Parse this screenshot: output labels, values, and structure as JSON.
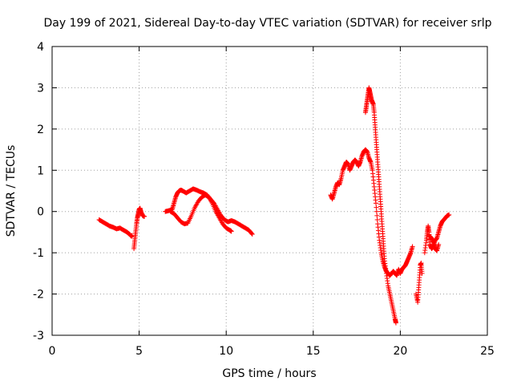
{
  "chart_data": {
    "type": "scatter",
    "title": "Day 199 of 2021, Sidereal Day-to-day VTEC variation (SDTVAR) for receiver srlp",
    "xlabel": "GPS time / hours",
    "ylabel": "SDTVAR / TECUs",
    "xlim": [
      0,
      25
    ],
    "ylim": [
      -3,
      4
    ],
    "xticks": [
      0,
      5,
      10,
      15,
      20,
      25
    ],
    "yticks": [
      -3,
      -2,
      -1,
      0,
      1,
      2,
      3,
      4
    ],
    "grid": true,
    "marker": "+",
    "color": "#ff0000",
    "series": [
      {
        "name": "srlp",
        "segments": [
          [
            [
              2.7,
              -0.2
            ],
            [
              2.9,
              -0.25
            ],
            [
              3.1,
              -0.3
            ],
            [
              3.3,
              -0.35
            ],
            [
              3.5,
              -0.38
            ],
            [
              3.7,
              -0.42
            ],
            [
              3.9,
              -0.4
            ],
            [
              4.1,
              -0.45
            ],
            [
              4.3,
              -0.5
            ],
            [
              4.45,
              -0.55
            ],
            [
              4.55,
              -0.6
            ],
            [
              4.6,
              -0.58
            ]
          ],
          [
            [
              4.7,
              -0.9
            ],
            [
              4.75,
              -0.7
            ],
            [
              4.8,
              -0.5
            ],
            [
              4.85,
              -0.3
            ],
            [
              4.9,
              -0.15
            ],
            [
              4.95,
              -0.05
            ],
            [
              5.0,
              0.05
            ],
            [
              5.05,
              0.08
            ],
            [
              5.1,
              0.0
            ],
            [
              5.2,
              -0.1
            ],
            [
              5.3,
              -0.12
            ]
          ],
          [
            [
              6.5,
              0.0
            ],
            [
              6.7,
              0.02
            ],
            [
              6.9,
              0.05
            ],
            [
              7.0,
              0.2
            ],
            [
              7.1,
              0.35
            ],
            [
              7.2,
              0.45
            ],
            [
              7.3,
              0.5
            ],
            [
              7.4,
              0.52
            ],
            [
              7.5,
              0.5
            ],
            [
              7.7,
              0.45
            ],
            [
              7.9,
              0.5
            ],
            [
              8.1,
              0.55
            ],
            [
              8.3,
              0.52
            ],
            [
              8.5,
              0.48
            ],
            [
              8.7,
              0.45
            ],
            [
              8.9,
              0.4
            ],
            [
              9.1,
              0.3
            ],
            [
              9.3,
              0.2
            ],
            [
              9.5,
              0.05
            ],
            [
              9.7,
              -0.1
            ],
            [
              9.9,
              -0.2
            ],
            [
              10.1,
              -0.25
            ],
            [
              10.3,
              -0.22
            ],
            [
              10.5,
              -0.25
            ],
            [
              10.7,
              -0.3
            ],
            [
              10.9,
              -0.35
            ],
            [
              11.1,
              -0.4
            ],
            [
              11.3,
              -0.45
            ],
            [
              11.5,
              -0.55
            ]
          ],
          [
            [
              6.8,
              0.0
            ],
            [
              7.0,
              -0.05
            ],
            [
              7.2,
              -0.15
            ],
            [
              7.4,
              -0.25
            ],
            [
              7.6,
              -0.3
            ],
            [
              7.8,
              -0.28
            ],
            [
              8.0,
              -0.1
            ],
            [
              8.2,
              0.1
            ],
            [
              8.4,
              0.25
            ],
            [
              8.6,
              0.35
            ],
            [
              8.8,
              0.4
            ],
            [
              9.0,
              0.35
            ],
            [
              9.2,
              0.2
            ],
            [
              9.4,
              0.0
            ],
            [
              9.6,
              -0.15
            ],
            [
              9.8,
              -0.3
            ],
            [
              10.0,
              -0.4
            ],
            [
              10.2,
              -0.45
            ],
            [
              10.3,
              -0.48
            ]
          ],
          [
            [
              16.0,
              0.4
            ],
            [
              16.1,
              0.3
            ],
            [
              16.2,
              0.45
            ],
            [
              16.3,
              0.6
            ],
            [
              16.4,
              0.7
            ],
            [
              16.5,
              0.65
            ],
            [
              16.6,
              0.8
            ],
            [
              16.7,
              1.0
            ],
            [
              16.8,
              1.1
            ],
            [
              16.9,
              1.2
            ],
            [
              17.0,
              1.15
            ],
            [
              17.1,
              1.0
            ],
            [
              17.2,
              1.1
            ],
            [
              17.3,
              1.2
            ],
            [
              17.4,
              1.25
            ],
            [
              17.5,
              1.2
            ],
            [
              17.6,
              1.1
            ],
            [
              17.7,
              1.2
            ],
            [
              17.8,
              1.35
            ],
            [
              17.9,
              1.45
            ],
            [
              18.0,
              1.5
            ],
            [
              18.1,
              1.45
            ],
            [
              18.2,
              1.3
            ],
            [
              18.3,
              1.2
            ],
            [
              18.4,
              1.0
            ],
            [
              18.5,
              0.6
            ],
            [
              18.6,
              0.2
            ],
            [
              18.7,
              -0.3
            ],
            [
              18.8,
              -0.7
            ],
            [
              18.9,
              -1.0
            ],
            [
              19.0,
              -1.2
            ],
            [
              19.1,
              -1.35
            ],
            [
              19.2,
              -1.45
            ],
            [
              19.3,
              -1.5
            ],
            [
              19.4,
              -1.55
            ],
            [
              19.5,
              -1.5
            ],
            [
              19.6,
              -1.45
            ],
            [
              19.7,
              -1.5
            ],
            [
              19.8,
              -1.55
            ],
            [
              19.9,
              -1.4
            ],
            [
              20.0,
              -1.5
            ],
            [
              20.1,
              -1.4
            ],
            [
              20.2,
              -1.35
            ],
            [
              20.3,
              -1.3
            ],
            [
              20.4,
              -1.2
            ],
            [
              20.5,
              -1.1
            ],
            [
              20.6,
              -1.0
            ],
            [
              20.7,
              -0.85
            ]
          ],
          [
            [
              18.0,
              2.4
            ],
            [
              18.05,
              2.55
            ],
            [
              18.1,
              2.7
            ],
            [
              18.15,
              2.85
            ],
            [
              18.2,
              3.0
            ],
            [
              18.25,
              2.9
            ],
            [
              18.3,
              2.8
            ],
            [
              18.35,
              2.7
            ],
            [
              18.4,
              2.65
            ],
            [
              18.45,
              2.6
            ],
            [
              18.5,
              2.4
            ],
            [
              18.55,
              2.1
            ],
            [
              18.6,
              1.8
            ],
            [
              18.65,
              1.5
            ],
            [
              18.7,
              1.2
            ],
            [
              18.75,
              0.9
            ],
            [
              18.8,
              0.6
            ],
            [
              18.85,
              0.3
            ],
            [
              18.9,
              0.0
            ],
            [
              18.95,
              -0.3
            ],
            [
              19.0,
              -0.6
            ],
            [
              19.05,
              -0.9
            ],
            [
              19.1,
              -1.2
            ],
            [
              19.2,
              -1.5
            ],
            [
              19.3,
              -1.8
            ],
            [
              19.4,
              -2.0
            ],
            [
              19.5,
              -2.2
            ],
            [
              19.6,
              -2.4
            ],
            [
              19.7,
              -2.6
            ],
            [
              19.75,
              -2.7
            ]
          ],
          [
            [
              20.9,
              -2.0
            ],
            [
              21.0,
              -2.2
            ],
            [
              21.05,
              -1.9
            ],
            [
              21.1,
              -1.6
            ],
            [
              21.15,
              -1.3
            ],
            [
              21.2,
              -1.25
            ],
            [
              21.25,
              -1.5
            ]
          ],
          [
            [
              21.4,
              -1.0
            ],
            [
              21.5,
              -0.7
            ],
            [
              21.55,
              -0.5
            ],
            [
              21.6,
              -0.35
            ],
            [
              21.65,
              -0.5
            ],
            [
              21.7,
              -0.8
            ],
            [
              21.8,
              -0.9
            ],
            [
              21.9,
              -0.85
            ],
            [
              22.0,
              -0.7
            ],
            [
              22.1,
              -0.65
            ],
            [
              22.2,
              -0.5
            ],
            [
              22.3,
              -0.35
            ],
            [
              22.4,
              -0.25
            ],
            [
              22.5,
              -0.2
            ],
            [
              22.6,
              -0.15
            ],
            [
              22.7,
              -0.1
            ],
            [
              22.8,
              -0.08
            ]
          ],
          [
            [
              21.7,
              -0.6
            ],
            [
              21.8,
              -0.65
            ],
            [
              21.9,
              -0.75
            ],
            [
              22.0,
              -0.9
            ],
            [
              22.1,
              -0.95
            ],
            [
              22.2,
              -0.8
            ]
          ]
        ]
      }
    ]
  }
}
